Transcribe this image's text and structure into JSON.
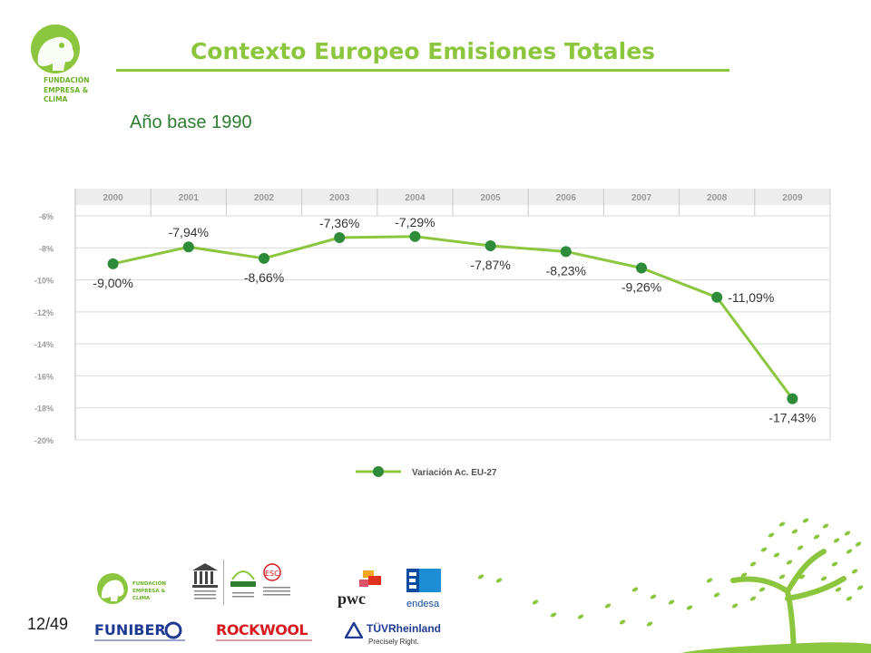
{
  "header": {
    "title": "Contexto Europeo Emisiones Totales",
    "subtitle": "Año base 1990",
    "brand_lines": [
      "FUNDACIÓN",
      "EMPRESA &",
      "CLIMA"
    ]
  },
  "chart_data": {
    "type": "line",
    "categories": [
      "2000",
      "2001",
      "2002",
      "2003",
      "2004",
      "2005",
      "2006",
      "2007",
      "2008",
      "2009"
    ],
    "series": [
      {
        "name": "Variación Ac. EU-27",
        "values": [
          -9.0,
          -7.94,
          -8.66,
          -7.36,
          -7.29,
          -7.87,
          -8.23,
          -9.26,
          -11.09,
          -17.43
        ],
        "labels": [
          "-9,00%",
          "-7,94%",
          "-8,66%",
          "-7,36%",
          "-7,29%",
          "-7,87%",
          "-8,23%",
          "-9,26%",
          "-11,09%",
          "-17,43%"
        ]
      }
    ],
    "ylim": [
      -20,
      -6
    ],
    "yticks": [
      -6,
      -8,
      -10,
      -12,
      -14,
      -16,
      -18,
      -20
    ],
    "ytick_labels": [
      "-6%",
      "-8%",
      "-10%",
      "-12%",
      "-14%",
      "-16%",
      "-18%",
      "-20%"
    ],
    "grid": true,
    "legend_position": "bottom",
    "xaxis_position": "top",
    "colors": {
      "line": "#8cc63f",
      "marker": "#2e8b3a",
      "grid": "#d9d9d9",
      "header": "#ededed"
    }
  },
  "footer": {
    "page": "12/49",
    "sponsors": [
      {
        "name": "FUNIBER"
      },
      {
        "name": "ROCKWOOL"
      },
      {
        "name": "TÜVRheinland"
      },
      {
        "name": "pwc"
      },
      {
        "name": "endesa"
      }
    ],
    "sponsor_captions": [
      "Precisely Right."
    ]
  },
  "colors": {
    "accent": "#8cc63f",
    "dark_green": "#2e7d32",
    "funiber": "#1f3a93",
    "rockwool": "#d71920",
    "tuv": "#1f3a93",
    "pwc_orange": "#e0301e",
    "endesa": "#0c4da2"
  }
}
